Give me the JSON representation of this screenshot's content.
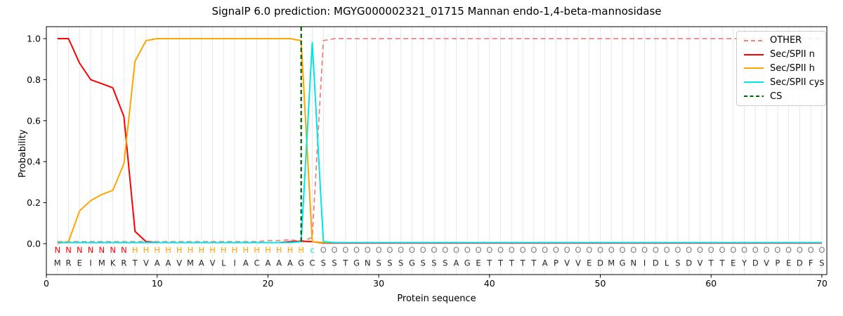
{
  "figure": {
    "title": "SignalP 6.0 prediction: MGYG000002321_01715 Mannan endo-1,4-beta-mannosidase"
  },
  "chart_data": {
    "type": "line",
    "title": "SignalP 6.0 prediction: MGYG000002321_01715 Mannan endo-1,4-beta-mannosidase",
    "xlabel": "Protein sequence",
    "ylabel": "Probability",
    "x_start": 1,
    "xlim": [
      0,
      70.45
    ],
    "ylim": [
      -0.15,
      1.06
    ],
    "xticks": [
      0,
      10,
      20,
      30,
      40,
      50,
      60,
      70
    ],
    "yticks": [
      "0.0",
      "0.2",
      "0.4",
      "0.6",
      "0.8",
      "1.0"
    ],
    "grid": "vertical line at every residue position",
    "legend_position": "upper right",
    "series": [
      {
        "name": "OTHER",
        "color": "#f08080",
        "dash": "7 4.5",
        "width": 1.8,
        "values": [
          0.01,
          0.01,
          0.01,
          0.01,
          0.01,
          0.01,
          0.01,
          0.01,
          0.01,
          0.01,
          0.01,
          0.01,
          0.01,
          0.01,
          0.01,
          0.01,
          0.01,
          0.01,
          0.01,
          0.015,
          0.015,
          0.02,
          0.01,
          0.03,
          0.99,
          1,
          1,
          1,
          1,
          1,
          1,
          1,
          1,
          1,
          1,
          1,
          1,
          1,
          1,
          1,
          1,
          1,
          1,
          1,
          1,
          1,
          1,
          1,
          1,
          1,
          1,
          1,
          1,
          1,
          1,
          1,
          1,
          1,
          1,
          1,
          1,
          1,
          1,
          1,
          1,
          1,
          1,
          1,
          1,
          1
        ]
      },
      {
        "name": "Sec/SPII n",
        "color": "#ff0000",
        "dash": "",
        "width": 2,
        "values": [
          1,
          1,
          0.88,
          0.8,
          0.78,
          0.76,
          0.62,
          0.06,
          0.01,
          0.005,
          0.005,
          0.005,
          0.005,
          0.005,
          0.005,
          0.005,
          0.005,
          0.005,
          0.005,
          0.005,
          0.005,
          0.01,
          0.012,
          0.01,
          0.003,
          0.003,
          0.003,
          0.003,
          0.003,
          0.003,
          0.003,
          0.003,
          0.003,
          0.003,
          0.003,
          0.003,
          0.003,
          0.003,
          0.003,
          0.003,
          0.003,
          0.003,
          0.003,
          0.003,
          0.003,
          0.003,
          0.003,
          0.003,
          0.003,
          0.003,
          0.003,
          0.003,
          0.003,
          0.003,
          0.003,
          0.003,
          0.003,
          0.003,
          0.003,
          0.003,
          0.003,
          0.003,
          0.003,
          0.003,
          0.003,
          0.003,
          0.003,
          0.003,
          0.003,
          0.003
        ]
      },
      {
        "name": "Sec/SPII h",
        "color": "#ffa500",
        "dash": "",
        "width": 2,
        "values": [
          0.001,
          0.01,
          0.16,
          0.21,
          0.24,
          0.26,
          0.39,
          0.89,
          0.99,
          1,
          1,
          1,
          1,
          1,
          1,
          1,
          1,
          1,
          1,
          1,
          1,
          1,
          0.99,
          0.01,
          0.005,
          0.005,
          0.005,
          0.005,
          0.005,
          0.005,
          0.005,
          0.005,
          0.005,
          0.005,
          0.005,
          0.005,
          0.005,
          0.005,
          0.005,
          0.005,
          0.005,
          0.005,
          0.005,
          0.005,
          0.005,
          0.005,
          0.005,
          0.005,
          0.005,
          0.005,
          0.005,
          0.005,
          0.005,
          0.005,
          0.005,
          0.005,
          0.005,
          0.005,
          0.005,
          0.005,
          0.005,
          0.005,
          0.005,
          0.005,
          0.005,
          0.005,
          0.005,
          0.005,
          0.005,
          0.005
        ]
      },
      {
        "name": "Sec/SPII cys",
        "color": "#00e5e5",
        "dash": "",
        "width": 2,
        "values": [
          0.005,
          0.005,
          0.005,
          0.005,
          0.005,
          0.005,
          0.005,
          0.005,
          0.005,
          0.005,
          0.005,
          0.005,
          0.005,
          0.005,
          0.005,
          0.005,
          0.005,
          0.005,
          0.005,
          0.005,
          0.005,
          0.005,
          0.01,
          0.98,
          0.01,
          0.005,
          0.005,
          0.005,
          0.005,
          0.005,
          0.005,
          0.005,
          0.005,
          0.005,
          0.005,
          0.005,
          0.005,
          0.005,
          0.005,
          0.005,
          0.005,
          0.005,
          0.005,
          0.005,
          0.005,
          0.005,
          0.005,
          0.005,
          0.005,
          0.005,
          0.005,
          0.005,
          0.005,
          0.005,
          0.005,
          0.005,
          0.005,
          0.005,
          0.005,
          0.005,
          0.005,
          0.005,
          0.005,
          0.005,
          0.005,
          0.005,
          0.005,
          0.005,
          0.005,
          0.005
        ]
      }
    ],
    "cs_marker": {
      "label": "CS",
      "x": 23,
      "color": "#006400",
      "dash": "6 4",
      "width": 2.2
    }
  },
  "legend": {
    "entries": [
      {
        "label": "OTHER",
        "color": "#f08080",
        "dash": "6 4"
      },
      {
        "label": "Sec/SPII n",
        "color": "#ff0000",
        "dash": ""
      },
      {
        "label": "Sec/SPII h",
        "color": "#ffa500",
        "dash": ""
      },
      {
        "label": "Sec/SPII cys",
        "color": "#00e5e5",
        "dash": ""
      },
      {
        "label": "CS",
        "color": "#006400",
        "dash": "5 3.5"
      }
    ]
  },
  "sequence": {
    "residues": "MREIMKRTVAAVMAVLIACAAAGCSSTGNSSSGSSSAGETTTTTAPVVEDMGNIDLSDVTTEYDVPEDFS",
    "annotations": "NNNNNNNHHHHHHHHHHHHHHHHcOOOOOOOOOOOOOOOOOOOOOOOOOOOOOOOOOOOOOOOOOOOOOO",
    "annotation_colors": {
      "N": "#ff0000",
      "H": "#ffa500",
      "c": "#00e5e5",
      "O": "#7f7f7f"
    },
    "residue_color": "#262626"
  },
  "style": {
    "grid_color": "#e8e8e8",
    "spine_color": "#000000",
    "background": "#ffffff"
  }
}
